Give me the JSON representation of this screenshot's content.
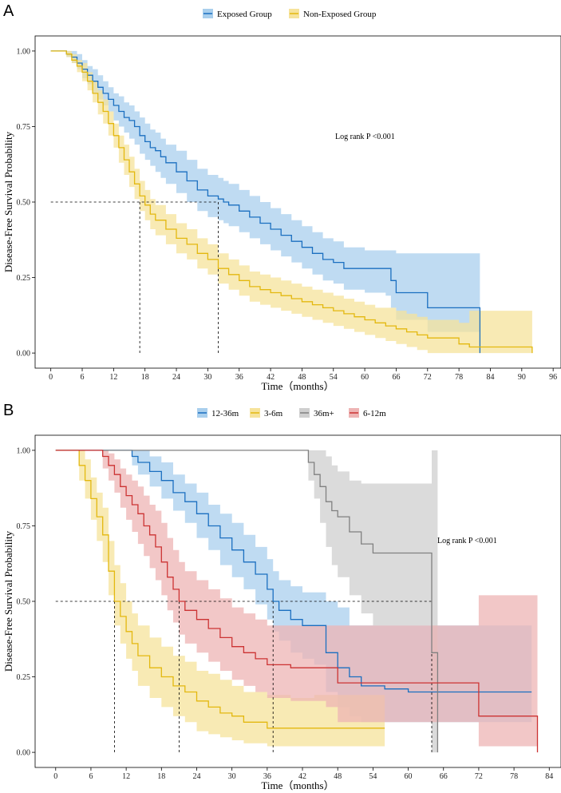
{
  "chart_data": [
    {
      "panel": "A",
      "type": "line",
      "subtype": "kaplan-meier",
      "xlabel": "Time（months）",
      "ylabel": "Disease-Free Survival Probability",
      "xlim": [
        -3,
        97.5
      ],
      "ylim": [
        -0.05,
        1.05
      ],
      "xticks": [
        0,
        6,
        12,
        18,
        24,
        30,
        36,
        42,
        48,
        54,
        60,
        66,
        72,
        78,
        84,
        90,
        96
      ],
      "yticks": [
        0.0,
        0.25,
        0.5,
        0.75,
        1.0
      ],
      "ytick_labels": [
        "0.00",
        "0.25",
        "0.50",
        "0.75",
        "1.00"
      ],
      "legend": {
        "position": "top",
        "entries": [
          "Exposed Group",
          "Non-Exposed Group"
        ]
      },
      "annotation": {
        "text": "Log rank P <0.001",
        "x": 63,
        "y": 0.79
      },
      "median_line": {
        "y": 0.5,
        "x_start": 0,
        "medians": [
          17,
          32
        ]
      },
      "series": [
        {
          "name": "Exposed Group",
          "color": "#1b6fc0",
          "fill": "#a9cfed",
          "x": [
            0,
            3,
            4,
            5,
            6,
            7,
            8,
            9,
            10,
            11,
            12,
            13,
            14,
            15,
            16,
            17,
            18,
            19,
            20,
            21,
            22,
            24,
            26,
            28,
            30,
            32,
            33,
            34,
            36,
            38,
            40,
            42,
            44,
            46,
            48,
            50,
            52,
            54,
            56,
            60,
            64,
            65,
            66,
            72,
            82
          ],
          "y": [
            1.0,
            0.99,
            0.98,
            0.96,
            0.94,
            0.92,
            0.9,
            0.88,
            0.86,
            0.84,
            0.82,
            0.8,
            0.78,
            0.77,
            0.75,
            0.72,
            0.7,
            0.68,
            0.67,
            0.65,
            0.63,
            0.6,
            0.57,
            0.54,
            0.52,
            0.51,
            0.5,
            0.49,
            0.47,
            0.45,
            0.43,
            0.41,
            0.39,
            0.37,
            0.35,
            0.33,
            0.31,
            0.3,
            0.28,
            0.28,
            0.28,
            0.24,
            0.2,
            0.15,
            0.0
          ],
          "lower": [
            1.0,
            0.98,
            0.96,
            0.94,
            0.91,
            0.89,
            0.86,
            0.84,
            0.82,
            0.8,
            0.77,
            0.75,
            0.73,
            0.71,
            0.69,
            0.66,
            0.64,
            0.62,
            0.6,
            0.58,
            0.56,
            0.53,
            0.5,
            0.47,
            0.45,
            0.44,
            0.43,
            0.42,
            0.4,
            0.38,
            0.36,
            0.34,
            0.32,
            0.3,
            0.28,
            0.26,
            0.24,
            0.23,
            0.21,
            0.2,
            0.19,
            0.15,
            0.11,
            0.07,
            0.0
          ],
          "upper": [
            1.0,
            1.0,
            1.0,
            0.99,
            0.97,
            0.95,
            0.94,
            0.92,
            0.9,
            0.88,
            0.86,
            0.85,
            0.83,
            0.82,
            0.8,
            0.78,
            0.76,
            0.74,
            0.73,
            0.71,
            0.69,
            0.67,
            0.64,
            0.61,
            0.59,
            0.58,
            0.57,
            0.56,
            0.54,
            0.52,
            0.5,
            0.48,
            0.46,
            0.44,
            0.42,
            0.4,
            0.38,
            0.37,
            0.35,
            0.34,
            0.34,
            0.34,
            0.33,
            0.33,
            0.0
          ]
        },
        {
          "name": "Non-Exposed Group",
          "color": "#e3b80f",
          "fill": "#f6e39b",
          "x": [
            0,
            3,
            4,
            5,
            6,
            7,
            8,
            9,
            10,
            11,
            12,
            13,
            14,
            15,
            16,
            17,
            18,
            19,
            20,
            22,
            24,
            26,
            28,
            30,
            32,
            34,
            36,
            38,
            40,
            42,
            44,
            46,
            48,
            50,
            52,
            54,
            56,
            58,
            60,
            62,
            64,
            66,
            68,
            70,
            72,
            78,
            80,
            92
          ],
          "y": [
            1.0,
            0.99,
            0.97,
            0.95,
            0.93,
            0.9,
            0.86,
            0.83,
            0.8,
            0.76,
            0.72,
            0.68,
            0.64,
            0.6,
            0.56,
            0.52,
            0.49,
            0.46,
            0.44,
            0.41,
            0.38,
            0.36,
            0.33,
            0.31,
            0.28,
            0.26,
            0.24,
            0.22,
            0.21,
            0.2,
            0.19,
            0.18,
            0.17,
            0.16,
            0.15,
            0.14,
            0.13,
            0.12,
            0.11,
            0.1,
            0.09,
            0.08,
            0.07,
            0.06,
            0.05,
            0.03,
            0.02,
            0.0
          ],
          "lower": [
            1.0,
            0.98,
            0.96,
            0.93,
            0.9,
            0.87,
            0.83,
            0.79,
            0.76,
            0.72,
            0.68,
            0.63,
            0.59,
            0.55,
            0.51,
            0.47,
            0.44,
            0.41,
            0.39,
            0.36,
            0.33,
            0.31,
            0.28,
            0.26,
            0.23,
            0.21,
            0.19,
            0.17,
            0.16,
            0.15,
            0.14,
            0.13,
            0.12,
            0.11,
            0.1,
            0.09,
            0.08,
            0.07,
            0.06,
            0.05,
            0.04,
            0.03,
            0.02,
            0.01,
            0.0,
            0.0,
            0.0,
            0.0
          ],
          "upper": [
            1.0,
            1.0,
            0.99,
            0.97,
            0.96,
            0.93,
            0.9,
            0.87,
            0.84,
            0.8,
            0.76,
            0.72,
            0.69,
            0.65,
            0.61,
            0.57,
            0.54,
            0.51,
            0.49,
            0.46,
            0.43,
            0.41,
            0.38,
            0.36,
            0.33,
            0.31,
            0.29,
            0.27,
            0.26,
            0.25,
            0.24,
            0.23,
            0.22,
            0.21,
            0.2,
            0.19,
            0.18,
            0.17,
            0.16,
            0.15,
            0.15,
            0.14,
            0.13,
            0.12,
            0.11,
            0.1,
            0.14,
            0.0
          ]
        }
      ]
    },
    {
      "panel": "B",
      "type": "line",
      "subtype": "kaplan-meier",
      "xlabel": "Time（months）",
      "ylabel": "Disease-Free Survival Probability",
      "xlim": [
        -3.5,
        86
      ],
      "ylim": [
        -0.05,
        1.05
      ],
      "xticks": [
        0,
        6,
        12,
        18,
        24,
        30,
        36,
        42,
        48,
        54,
        60,
        66,
        72,
        78,
        84
      ],
      "yticks": [
        0.0,
        0.25,
        0.5,
        0.75,
        1.0
      ],
      "ytick_labels": [
        "0.00",
        "0.25",
        "0.50",
        "0.75",
        "1.00"
      ],
      "legend": {
        "position": "top",
        "entries": [
          "12-36m",
          "3-6m",
          "36m+",
          "6-12m"
        ]
      },
      "annotation": {
        "text": "Log rank P <0.001",
        "x": 67.5,
        "y": 0.71
      },
      "median_line": {
        "y": 0.5,
        "x_start": 0,
        "medians": [
          10,
          21,
          37,
          64
        ]
      },
      "series": [
        {
          "name": "12-36m",
          "color": "#1b6fc0",
          "fill": "#a9cfed",
          "x": [
            0,
            12,
            13,
            14,
            16,
            18,
            20,
            22,
            24,
            26,
            28,
            30,
            32,
            34,
            36,
            37,
            38,
            40,
            42,
            44,
            46,
            48,
            50,
            52,
            56,
            60,
            72,
            81
          ],
          "y": [
            1.0,
            1.0,
            0.98,
            0.96,
            0.93,
            0.9,
            0.86,
            0.83,
            0.79,
            0.75,
            0.71,
            0.67,
            0.63,
            0.59,
            0.54,
            0.5,
            0.47,
            0.44,
            0.42,
            0.42,
            0.33,
            0.28,
            0.25,
            0.22,
            0.21,
            0.2,
            0.2,
            0.2
          ],
          "lower": [
            1.0,
            1.0,
            0.95,
            0.92,
            0.88,
            0.84,
            0.8,
            0.76,
            0.71,
            0.67,
            0.62,
            0.58,
            0.54,
            0.49,
            0.44,
            0.4,
            0.37,
            0.33,
            0.31,
            0.29,
            0.2,
            0.15,
            0.12,
            0.1,
            0.1,
            0.1,
            0.1,
            0.1
          ],
          "upper": [
            1.0,
            1.0,
            1.0,
            1.0,
            0.98,
            0.96,
            0.92,
            0.89,
            0.86,
            0.82,
            0.79,
            0.76,
            0.72,
            0.68,
            0.64,
            0.6,
            0.57,
            0.55,
            0.53,
            0.53,
            0.5,
            0.48,
            0.42,
            0.42,
            0.42,
            0.42,
            0.42,
            0.42
          ]
        },
        {
          "name": "3-6m",
          "color": "#e3b80f",
          "fill": "#f6e39b",
          "x": [
            0,
            3,
            4,
            5,
            6,
            7,
            8,
            9,
            10,
            11,
            12,
            13,
            14,
            16,
            18,
            20,
            22,
            24,
            26,
            28,
            30,
            32,
            36,
            40,
            44,
            48,
            56
          ],
          "y": [
            1.0,
            1.0,
            0.95,
            0.9,
            0.84,
            0.78,
            0.72,
            0.6,
            0.5,
            0.45,
            0.4,
            0.36,
            0.32,
            0.28,
            0.25,
            0.22,
            0.2,
            0.17,
            0.15,
            0.13,
            0.12,
            0.1,
            0.08,
            0.08,
            0.08,
            0.08,
            0.08
          ],
          "lower": [
            1.0,
            1.0,
            0.9,
            0.84,
            0.77,
            0.7,
            0.63,
            0.52,
            0.42,
            0.36,
            0.31,
            0.27,
            0.22,
            0.18,
            0.15,
            0.12,
            0.1,
            0.07,
            0.06,
            0.05,
            0.04,
            0.03,
            0.02,
            0.02,
            0.02,
            0.02,
            0.02
          ],
          "upper": [
            1.0,
            1.0,
            1.0,
            0.97,
            0.91,
            0.86,
            0.81,
            0.7,
            0.62,
            0.56,
            0.5,
            0.46,
            0.42,
            0.38,
            0.35,
            0.32,
            0.3,
            0.27,
            0.26,
            0.24,
            0.22,
            0.2,
            0.19,
            0.18,
            0.19,
            0.19,
            0.19
          ]
        },
        {
          "name": "36m+",
          "color": "#808080",
          "fill": "#cfcfcf",
          "x": [
            0,
            42,
            43,
            44,
            45,
            46,
            47,
            48,
            50,
            52,
            54,
            56,
            64,
            65
          ],
          "y": [
            1.0,
            1.0,
            0.96,
            0.92,
            0.88,
            0.83,
            0.8,
            0.78,
            0.73,
            0.69,
            0.66,
            0.66,
            0.33,
            0.0
          ],
          "lower": [
            1.0,
            1.0,
            0.9,
            0.84,
            0.76,
            0.68,
            0.62,
            0.58,
            0.52,
            0.46,
            0.42,
            0.42,
            0.0,
            0.0
          ],
          "upper": [
            1.0,
            1.0,
            1.0,
            1.0,
            1.0,
            0.98,
            0.95,
            0.93,
            0.9,
            0.89,
            0.89,
            0.89,
            1.0,
            0.0
          ]
        },
        {
          "name": "6-12m",
          "color": "#cc3333",
          "fill": "#eeb4b4",
          "x": [
            0,
            7,
            8,
            9,
            10,
            11,
            12,
            13,
            14,
            15,
            16,
            17,
            18,
            19,
            20,
            21,
            22,
            24,
            26,
            28,
            30,
            32,
            34,
            36,
            40,
            44,
            46,
            48,
            50,
            54,
            60,
            64,
            68,
            72,
            82
          ],
          "y": [
            1.0,
            1.0,
            0.98,
            0.95,
            0.92,
            0.88,
            0.85,
            0.82,
            0.79,
            0.75,
            0.72,
            0.68,
            0.63,
            0.58,
            0.54,
            0.5,
            0.47,
            0.44,
            0.41,
            0.38,
            0.35,
            0.33,
            0.31,
            0.29,
            0.28,
            0.28,
            0.28,
            0.23,
            0.23,
            0.23,
            0.23,
            0.23,
            0.23,
            0.12,
            0.0
          ],
          "lower": [
            1.0,
            1.0,
            0.94,
            0.9,
            0.86,
            0.81,
            0.77,
            0.73,
            0.69,
            0.65,
            0.61,
            0.57,
            0.52,
            0.47,
            0.43,
            0.39,
            0.36,
            0.33,
            0.3,
            0.27,
            0.24,
            0.22,
            0.2,
            0.18,
            0.17,
            0.17,
            0.15,
            0.1,
            0.1,
            0.1,
            0.1,
            0.1,
            0.1,
            0.02,
            0.0
          ],
          "upper": [
            1.0,
            1.0,
            1.0,
            0.99,
            0.97,
            0.94,
            0.92,
            0.9,
            0.88,
            0.85,
            0.82,
            0.8,
            0.76,
            0.71,
            0.67,
            0.63,
            0.6,
            0.57,
            0.54,
            0.51,
            0.48,
            0.46,
            0.44,
            0.42,
            0.42,
            0.42,
            0.42,
            0.42,
            0.42,
            0.42,
            0.42,
            0.42,
            0.42,
            0.52,
            0.0
          ]
        }
      ]
    }
  ]
}
